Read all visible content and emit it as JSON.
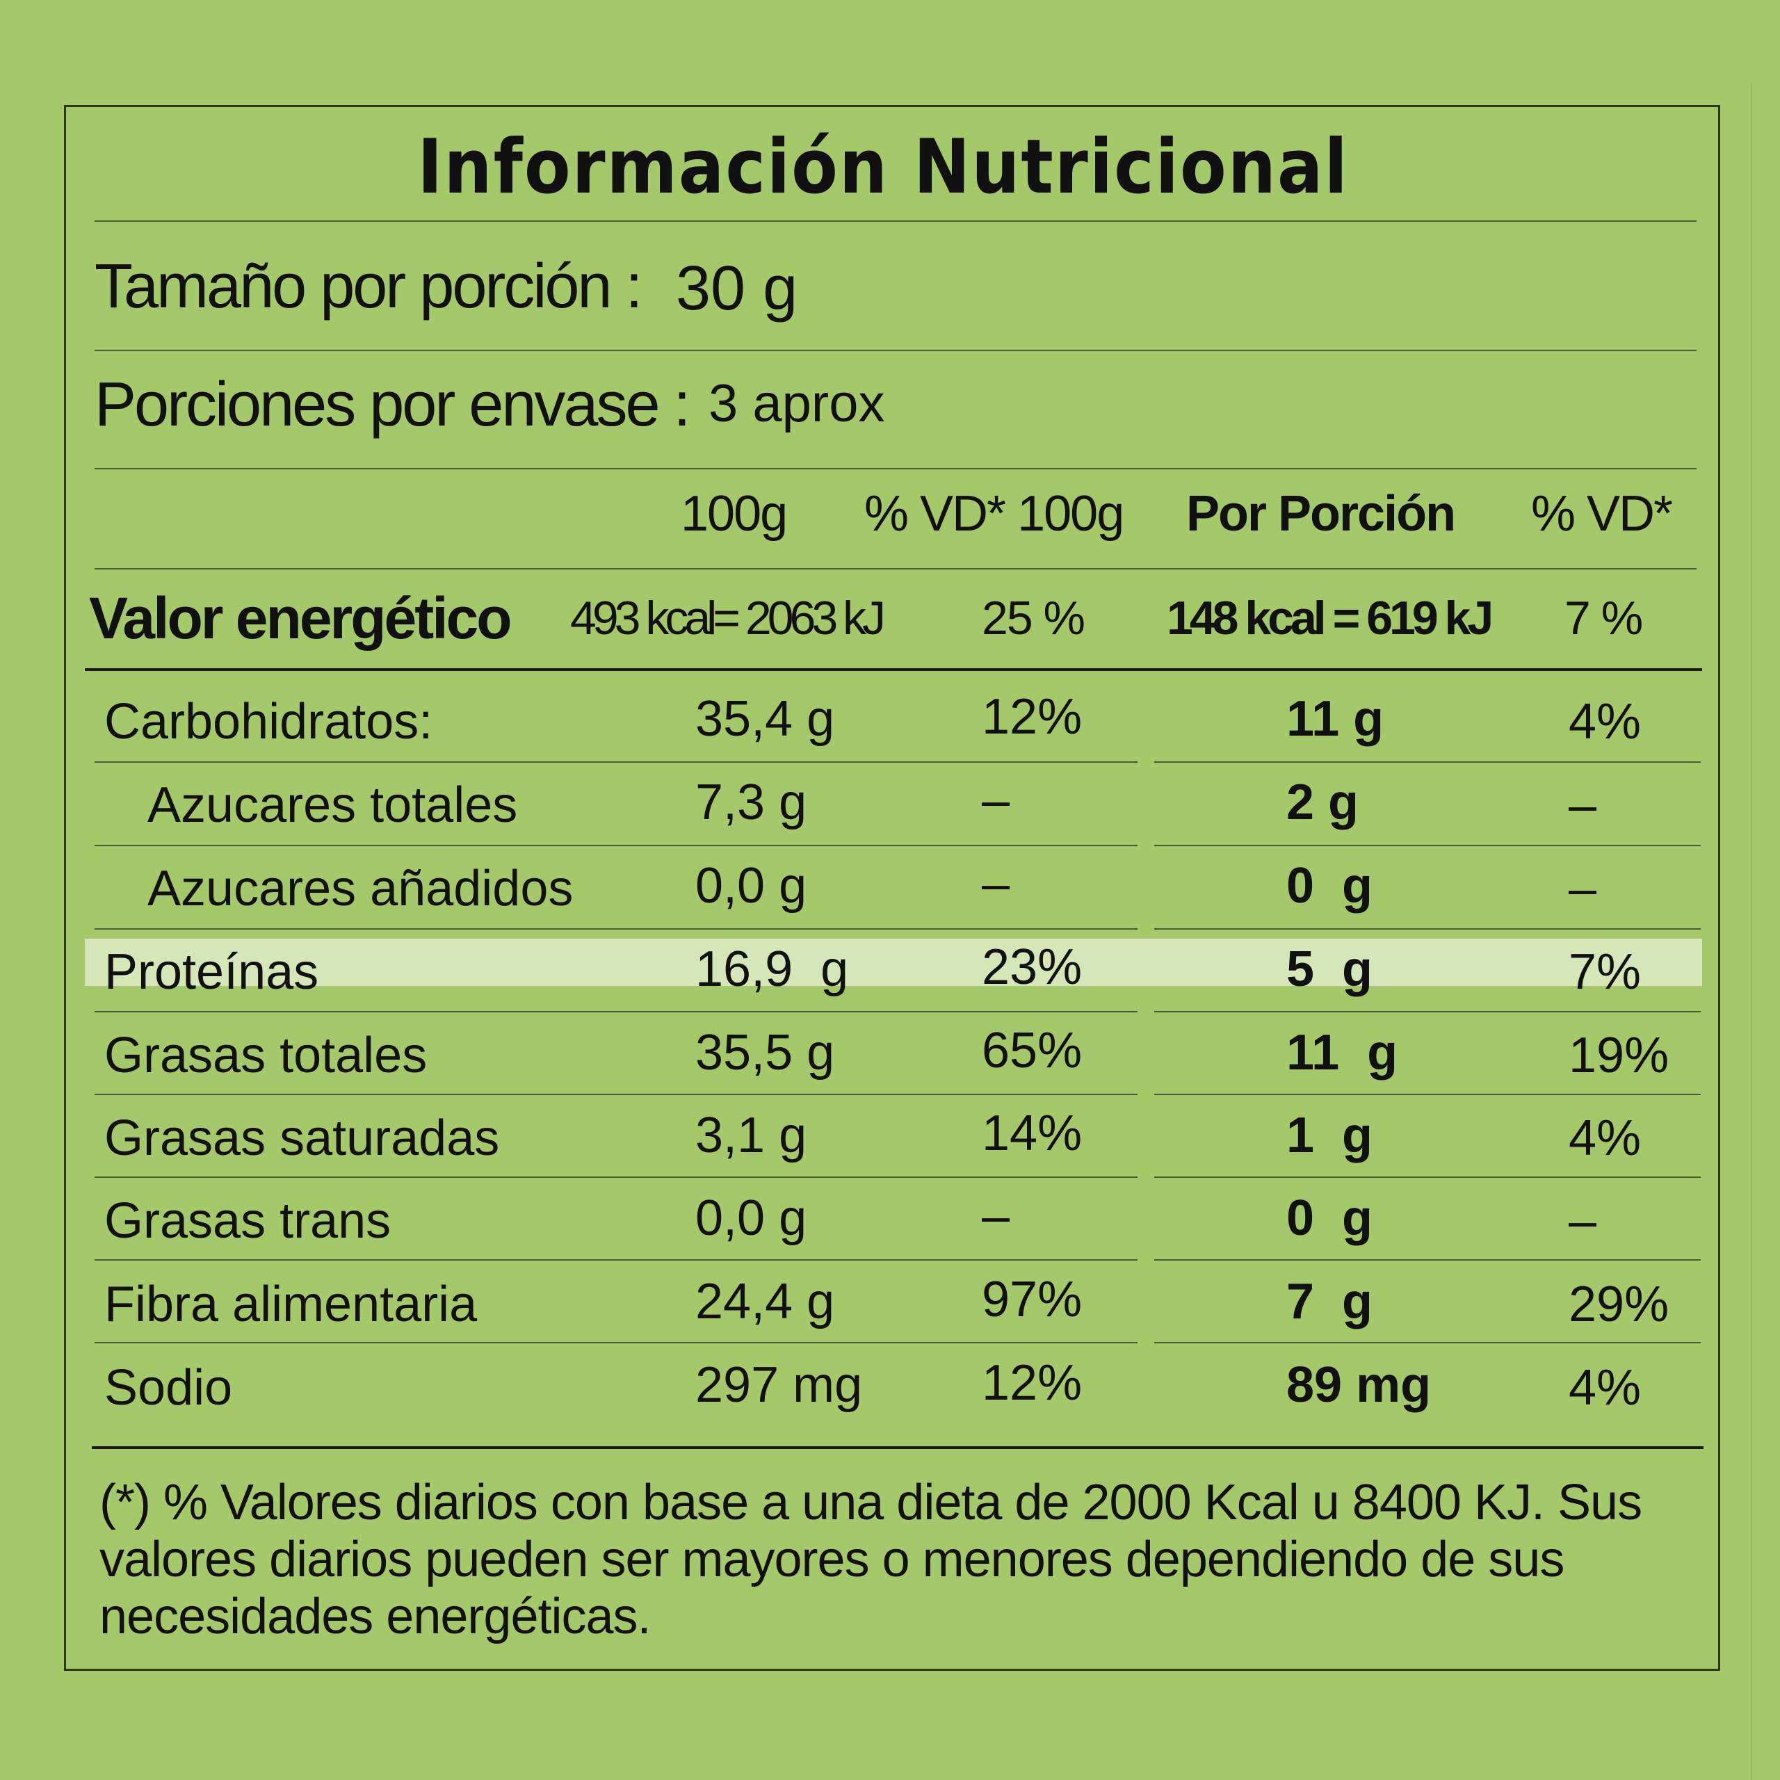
{
  "title": "Información Nutricional",
  "serving_size": {
    "label": "Tamaño por porción :",
    "value": "30 g"
  },
  "servings": {
    "label": "Porciones por envase :",
    "value": "3 aprox"
  },
  "columns": {
    "per100": "100g",
    "vd100": "% VD* 100g",
    "portion": "Por Porción",
    "vdportion": "% VD*"
  },
  "energy": {
    "label": "Valor energético",
    "per100": "493 kcal= 2063 kJ",
    "vd100": "25 %",
    "portion": "148 kcal = 619 kJ",
    "vdportion": "7 %"
  },
  "nutrients": [
    {
      "name": "Carbohidratos:",
      "per100": "35,4 g",
      "vd100": "12%",
      "portion": "11 g",
      "vdportion": "4%"
    },
    {
      "name": "Azucares totales",
      "per100": "7,3 g",
      "vd100": "–",
      "portion": "2 g",
      "vdportion": "–"
    },
    {
      "name": "Azucares añadidos",
      "per100": "0,0 g",
      "vd100": "–",
      "portion": "0  g",
      "vdportion": "–"
    },
    {
      "name": "Proteínas",
      "per100": "16,9  g",
      "vd100": "23%",
      "portion": "5  g",
      "vdportion": "7%"
    },
    {
      "name": "Grasas totales",
      "per100": "35,5 g",
      "vd100": "65%",
      "portion": "11  g",
      "vdportion": "19%"
    },
    {
      "name": "Grasas saturadas",
      "per100": "3,1 g",
      "vd100": "14%",
      "portion": "1  g",
      "vdportion": "4%"
    },
    {
      "name": "Grasas trans",
      "per100": "0,0 g",
      "vd100": "–",
      "portion": "0  g",
      "vdportion": "–"
    },
    {
      "name": "Fibra alimentaria",
      "per100": "24,4 g",
      "vd100": "97%",
      "portion": "7  g",
      "vdportion": "29%"
    },
    {
      "name": "Sodio",
      "per100": "297 mg",
      "vd100": "12%",
      "portion": "89 mg",
      "vdportion": "4%"
    }
  ],
  "footnote": "(*) % Valores diarios con base a una dieta de 2000 Kcal u 8400 KJ. Sus valores diarios pueden ser mayores o menores dependiendo de sus necesidades energéticas."
}
